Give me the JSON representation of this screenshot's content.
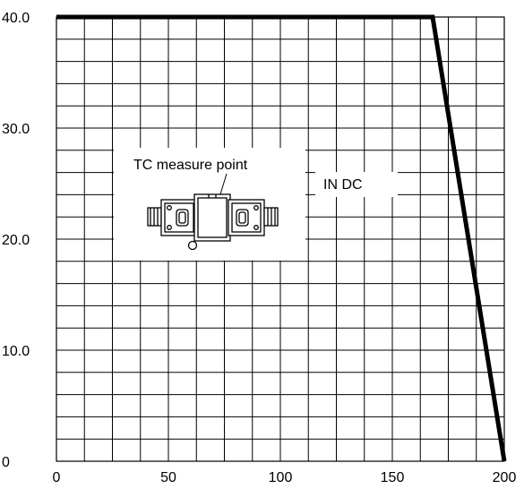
{
  "chart_data": {
    "type": "line",
    "title": "",
    "xlabel": "",
    "ylabel": "",
    "xlim": [
      0,
      200
    ],
    "ylim": [
      0,
      40
    ],
    "grid": true,
    "x_ticks": [
      "0",
      "50",
      "100",
      "150",
      "200"
    ],
    "y_ticks": [
      "0",
      "10.0",
      "20.0",
      "30.0",
      "40.0"
    ],
    "series": [
      {
        "x": [
          0,
          168,
          200
        ],
        "y": [
          40,
          40,
          0
        ]
      }
    ],
    "annotations": {
      "series_label": "IN DC",
      "inset_label": "TC measure point"
    }
  }
}
